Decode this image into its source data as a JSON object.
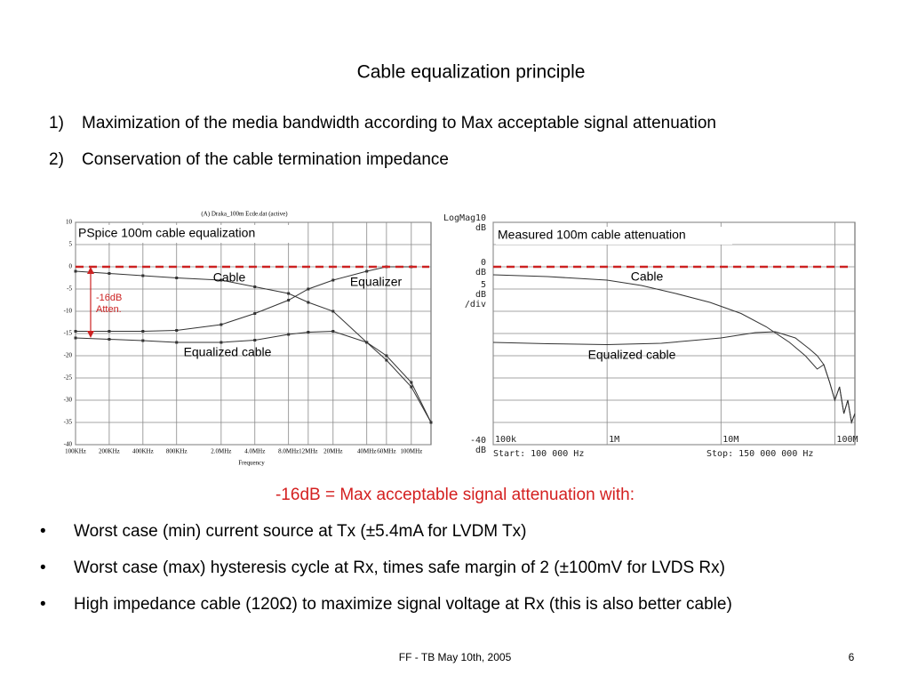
{
  "title": "Cable equalization principle",
  "goals": [
    {
      "number": "1)",
      "text": "Maximization of the media bandwidth according to Max acceptable signal attenuation"
    },
    {
      "number": "2)",
      "text": "Conservation of the cable termination impedance"
    }
  ],
  "chart_data": [
    {
      "type": "line",
      "header": "(A) Draka_100m Ecde.dat (active)",
      "label": "PSpice 100m cable equalization",
      "xlabel": "Frequency",
      "xscale": "log",
      "xlim": [
        100000,
        150000000
      ],
      "ylim": [
        -40,
        10
      ],
      "yticks": [
        10,
        5,
        0,
        -5,
        -10,
        -15,
        -20,
        -25,
        -30,
        -35,
        -40
      ],
      "xticks": [
        {
          "value": 100000,
          "label": "100KHz"
        },
        {
          "value": 200000,
          "label": "200KHz"
        },
        {
          "value": 400000,
          "label": "400KHz"
        },
        {
          "value": 800000,
          "label": "800KHz"
        },
        {
          "value": 2000000,
          "label": "2.0MHz"
        },
        {
          "value": 4000000,
          "label": "4.0MHz"
        },
        {
          "value": 8000000,
          "label": "8.0MHz"
        },
        {
          "value": 12000000,
          "label": "12MHz"
        },
        {
          "value": 20000000,
          "label": "20MHz"
        },
        {
          "value": 40000000,
          "label": "40MHz"
        },
        {
          "value": 60000000,
          "label": "60MHz"
        },
        {
          "value": 100000000,
          "label": "100MHz"
        }
      ],
      "grid": true,
      "markers": true,
      "reference_line": {
        "value": 0,
        "color": "#cc2222"
      },
      "attenuation_arrow": {
        "from": 0,
        "to": -16,
        "label": [
          "-16dB",
          "Atten."
        ],
        "color": "#cc2222"
      },
      "series": [
        {
          "name": "Cable",
          "color": "#333333",
          "x": [
            100000,
            200000,
            400000,
            800000,
            2000000,
            4000000,
            8000000,
            12000000,
            20000000,
            40000000,
            60000000,
            100000000,
            150000000
          ],
          "values": [
            -1,
            -1.5,
            -2,
            -2.5,
            -3,
            -4.5,
            -6,
            -8,
            -10,
            -17,
            -21,
            -27,
            -35
          ]
        },
        {
          "name": "Equalizer",
          "color": "#333333",
          "x": [
            100000,
            200000,
            400000,
            800000,
            2000000,
            4000000,
            8000000,
            12000000,
            20000000,
            40000000,
            60000000,
            100000000
          ],
          "values": [
            -14.5,
            -14.5,
            -14.5,
            -14.3,
            -13,
            -10.5,
            -7.5,
            -5,
            -3,
            -1,
            0,
            0
          ]
        },
        {
          "name": "Equalized cable",
          "color": "#333333",
          "x": [
            100000,
            200000,
            400000,
            800000,
            2000000,
            4000000,
            8000000,
            12000000,
            20000000,
            40000000,
            60000000,
            100000000,
            150000000
          ],
          "values": [
            -16,
            -16.3,
            -16.6,
            -17,
            -17,
            -16.5,
            -15.2,
            -14.7,
            -14.5,
            -17,
            -20,
            -26,
            -35
          ]
        }
      ]
    },
    {
      "type": "line",
      "label": "Measured 100m cable attenuation",
      "yaxis_title": "LogMag",
      "ytick_unit": "dB",
      "scale_label": [
        "5",
        "dB",
        "/div"
      ],
      "xscale": "log",
      "xlim": [
        100000,
        150000000
      ],
      "ylim": [
        -40,
        10
      ],
      "yticks": [
        10,
        0,
        -40
      ],
      "ygrid": [
        10,
        5,
        0,
        -5,
        -10,
        -15,
        -20,
        -25,
        -30,
        -35,
        -40
      ],
      "xticks": [
        {
          "value": 100000,
          "label": "100k"
        },
        {
          "value": 1000000,
          "label": "1M"
        },
        {
          "value": 10000000,
          "label": "10M"
        },
        {
          "value": 100000000,
          "label": "100M"
        }
      ],
      "start": "Start:  100 000 Hz",
      "stop": "Stop:  150 000 000 Hz",
      "grid": true,
      "markers": false,
      "reference_line": {
        "value": 0,
        "color": "#cc2222"
      },
      "series": [
        {
          "name": "Cable",
          "color": "#333333",
          "x": [
            100000,
            300000,
            1000000,
            2000000,
            4000000,
            8000000,
            15000000,
            25000000,
            40000000,
            55000000,
            70000000,
            80000000,
            90000000,
            100000000,
            110000000,
            120000000,
            130000000,
            140000000,
            150000000
          ],
          "values": [
            -1.8,
            -2.2,
            -3,
            -4.2,
            -6,
            -8,
            -10.5,
            -13.5,
            -17,
            -20,
            -23,
            -22,
            -26,
            -30,
            -27,
            -33,
            -30,
            -35,
            -33
          ]
        },
        {
          "name": "Equalized cable",
          "color": "#333333",
          "x": [
            100000,
            300000,
            1000000,
            3000000,
            10000000,
            20000000,
            30000000,
            45000000,
            60000000,
            70000000,
            80000000,
            90000000,
            100000000,
            110000000,
            120000000,
            130000000,
            140000000,
            150000000
          ],
          "values": [
            -17,
            -17.3,
            -17.5,
            -17.2,
            -16,
            -14.8,
            -14.6,
            -16,
            -18.5,
            -20,
            -22,
            -26,
            -30,
            -27,
            -33,
            -30,
            -35,
            -33
          ]
        }
      ]
    }
  ],
  "emphasis": "-16dB = Max acceptable signal attenuation with:",
  "bullets": [
    {
      "symbol": "•",
      "text": "Worst case (min) current source at Tx (±5.4mA for LVDM Tx)"
    },
    {
      "symbol": "•",
      "text": "Worst case (max) hysteresis cycle at Rx, times safe margin of 2 (±100mV for LVDS Rx)"
    },
    {
      "symbol": "•",
      "text": "High impedance cable (120Ω) to maximize signal voltage at Rx (this is also better cable)"
    }
  ],
  "footer": {
    "text": "FF - TB May 10th, 2005",
    "page": "6"
  }
}
